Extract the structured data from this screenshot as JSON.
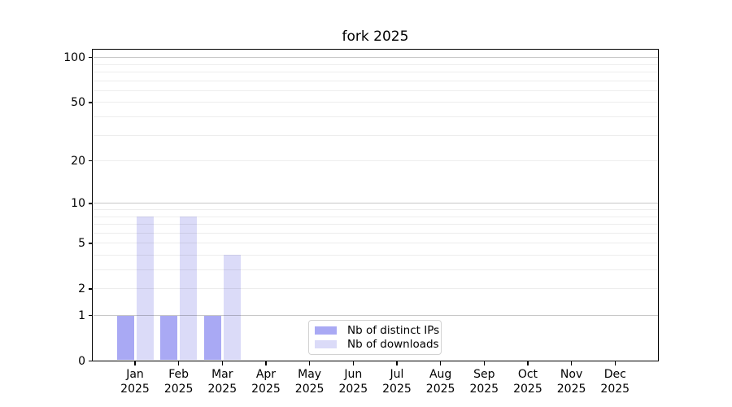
{
  "chart_data": {
    "type": "bar",
    "title": "fork 2025",
    "categories": [
      "Jan",
      "Feb",
      "Mar",
      "Apr",
      "May",
      "Jun",
      "Jul",
      "Aug",
      "Sep",
      "Oct",
      "Nov",
      "Dec"
    ],
    "category_year_line": "2025",
    "series": [
      {
        "name": "Nb of distinct IPs",
        "color": "#a9a9f4",
        "values": [
          1,
          1,
          1,
          0,
          0,
          0,
          0,
          0,
          0,
          0,
          0,
          0
        ]
      },
      {
        "name": "Nb of downloads",
        "color": "#dbdbf8",
        "values": [
          8,
          8,
          4,
          0,
          0,
          0,
          0,
          0,
          0,
          0,
          0,
          0
        ]
      }
    ],
    "xlabel": "",
    "ylabel": "",
    "y_scale": "log10(value+1)",
    "y_tick_labels": [
      0,
      1,
      2,
      5,
      10,
      20,
      50,
      100
    ],
    "y_major_gridlines": [
      1,
      10,
      100
    ],
    "y_minor_gridlines": [
      2,
      3,
      4,
      5,
      6,
      7,
      8,
      9,
      20,
      30,
      40,
      50,
      60,
      70,
      80,
      90
    ],
    "ylim": [
      0,
      115
    ],
    "grid": "horizontal, drawn over bars",
    "legend_position": "inside bottom-center"
  },
  "colors": {
    "background": "#ffffff",
    "axis": "#000000",
    "major_grid": "rgba(0,0,0,0.22)",
    "minor_grid": "rgba(0,0,0,0.07)",
    "legend_border": "#d2d2d2"
  }
}
